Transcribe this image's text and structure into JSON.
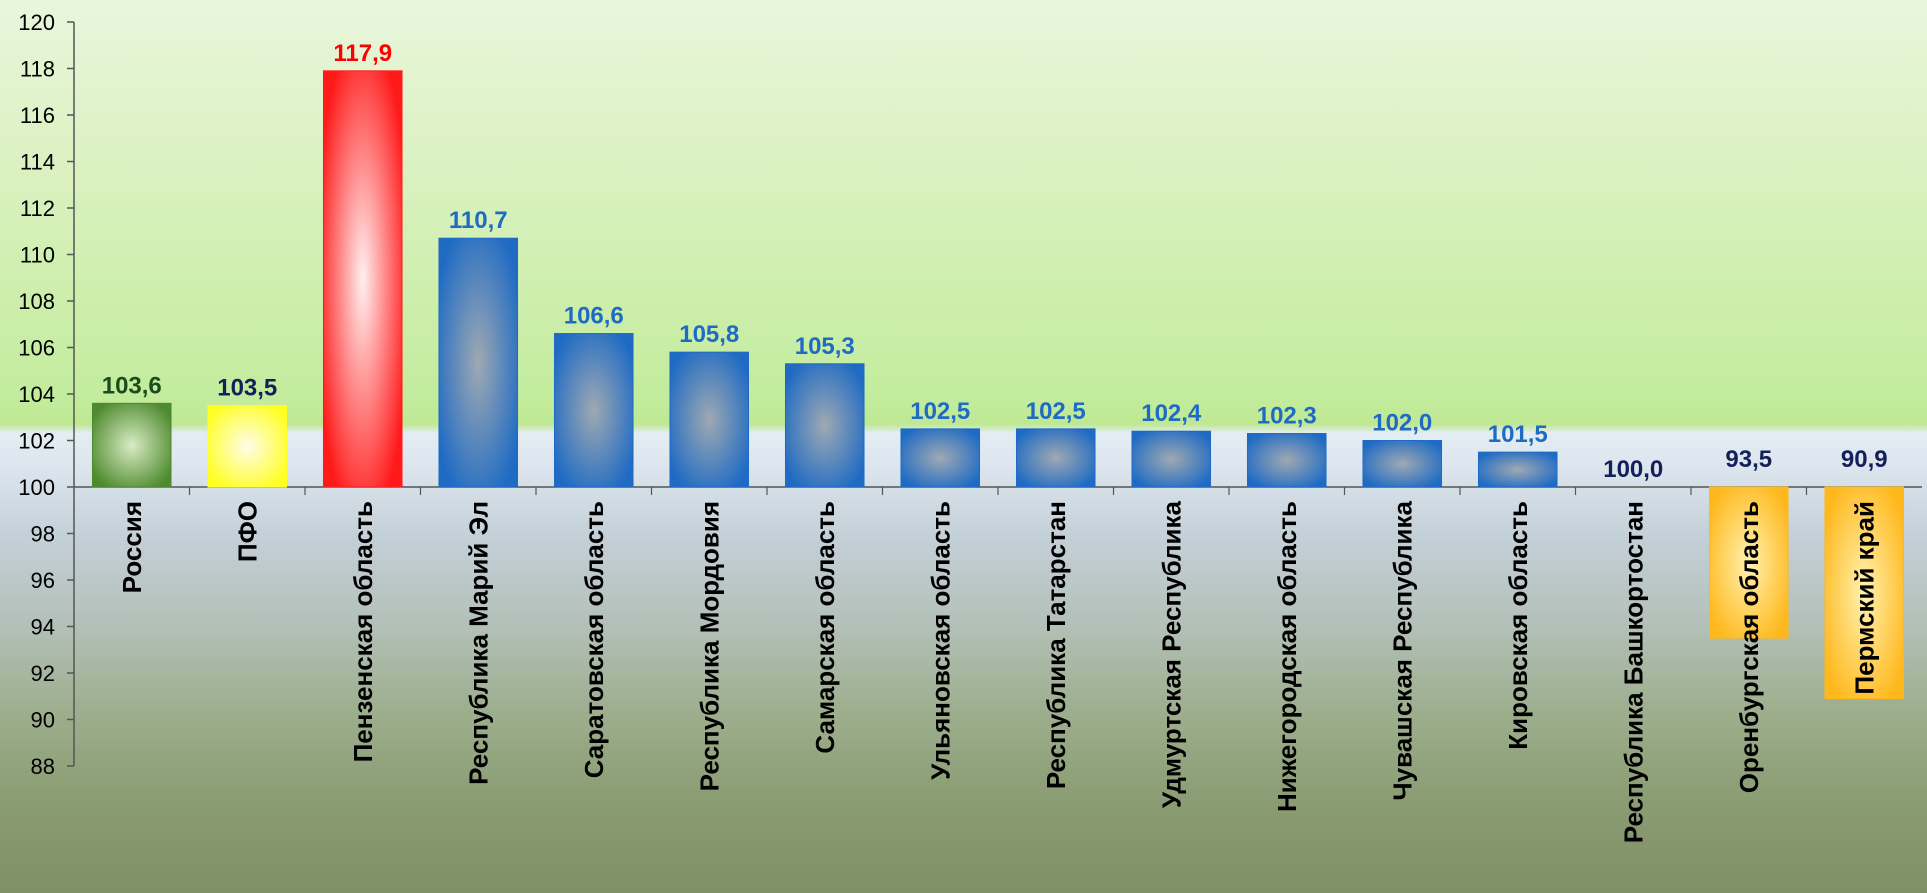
{
  "chart_data": {
    "type": "bar",
    "title": "",
    "xlabel": "",
    "ylabel": "",
    "ylim": [
      88,
      120
    ],
    "baseline": 100,
    "yticks": [
      88,
      90,
      92,
      94,
      96,
      98,
      100,
      102,
      104,
      106,
      108,
      110,
      112,
      114,
      116,
      118,
      120
    ],
    "grid": false,
    "categories": [
      "Россия",
      "ПФО",
      "Пензенская область",
      "Республика Марий Эл",
      "Саратовская область",
      "Республика Мордовия",
      "Самарская область",
      "Ульяновская область",
      "Республика Татарстан",
      "Удмуртская Республика",
      "Нижегородская область",
      "Чувашская Республика",
      "Кировская область",
      "Республика Башкортостан",
      "Оренбургская область",
      "Пермский край"
    ],
    "values": [
      103.6,
      103.5,
      117.9,
      110.7,
      106.6,
      105.8,
      105.3,
      102.5,
      102.5,
      102.4,
      102.3,
      102.0,
      101.5,
      100.0,
      93.5,
      90.9
    ],
    "value_labels": [
      "103,6",
      "103,5",
      "117,9",
      "110,7",
      "106,6",
      "105,8",
      "105,3",
      "102,5",
      "102,5",
      "102,4",
      "102,3",
      "102,0",
      "101,5",
      "100,0",
      "93,5",
      "90,9"
    ],
    "colors": {
      "green": "#4e8a2e",
      "yellow": "#ffff22",
      "red": "#ff1a1a",
      "blue": "#1f6bc4",
      "orange": "#ffb81c",
      "label_green": "#1b4d1b",
      "label_navy": "#14205a",
      "label_red": "#ff0000",
      "label_blue": "#1f6bc4"
    },
    "bar_colors": [
      "green",
      "yellow",
      "red",
      "blue",
      "blue",
      "blue",
      "blue",
      "blue",
      "blue",
      "blue",
      "blue",
      "blue",
      "blue",
      "none",
      "orange",
      "orange"
    ],
    "label_colors": [
      "label_green",
      "label_navy",
      "label_red",
      "label_blue",
      "label_blue",
      "label_blue",
      "label_blue",
      "label_blue",
      "label_blue",
      "label_blue",
      "label_blue",
      "label_blue",
      "label_blue",
      "label_navy",
      "label_navy",
      "label_navy"
    ]
  }
}
